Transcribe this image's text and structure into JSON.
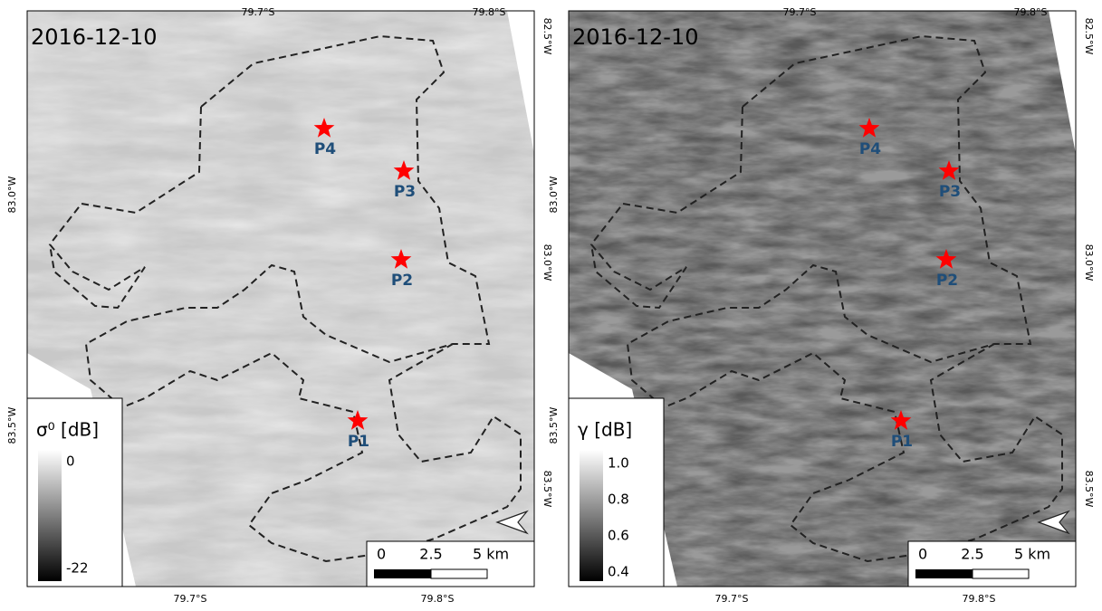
{
  "panels": [
    {
      "date": "2016-12-10",
      "top_ticks": [
        "79.7°S",
        "79.8°S"
      ],
      "bottom_ticks": [
        "79.7°S",
        "79.8°S"
      ],
      "left_ticks": [
        "83.0°W",
        "83.5°W"
      ],
      "right_ticks": [
        "82.5°W",
        "83.0°W",
        "83.5°W"
      ],
      "points": [
        "P4",
        "P3",
        "P2",
        "P1"
      ],
      "colorbar": {
        "label": "σ⁰ [dB]",
        "ticks": [
          "0",
          "-22"
        ]
      },
      "scale_bar": [
        "0",
        "2.5",
        "5 km"
      ]
    },
    {
      "date": "2016-12-10",
      "top_ticks": [
        "79.7°S",
        "79.8°S"
      ],
      "bottom_ticks": [
        "79.7°S",
        "79.8°S"
      ],
      "left_ticks": [
        "83.0°W",
        "83.5°W"
      ],
      "right_ticks": [
        "82.5°W",
        "83.0°W",
        "83.5°W"
      ],
      "points": [
        "P4",
        "P3",
        "P2",
        "P1"
      ],
      "colorbar": {
        "label": "γ [dB]",
        "ticks": [
          "1.0",
          "0.8",
          "0.6",
          "0.4"
        ]
      },
      "scale_bar": [
        "0",
        "2.5",
        "5 km"
      ]
    }
  ]
}
